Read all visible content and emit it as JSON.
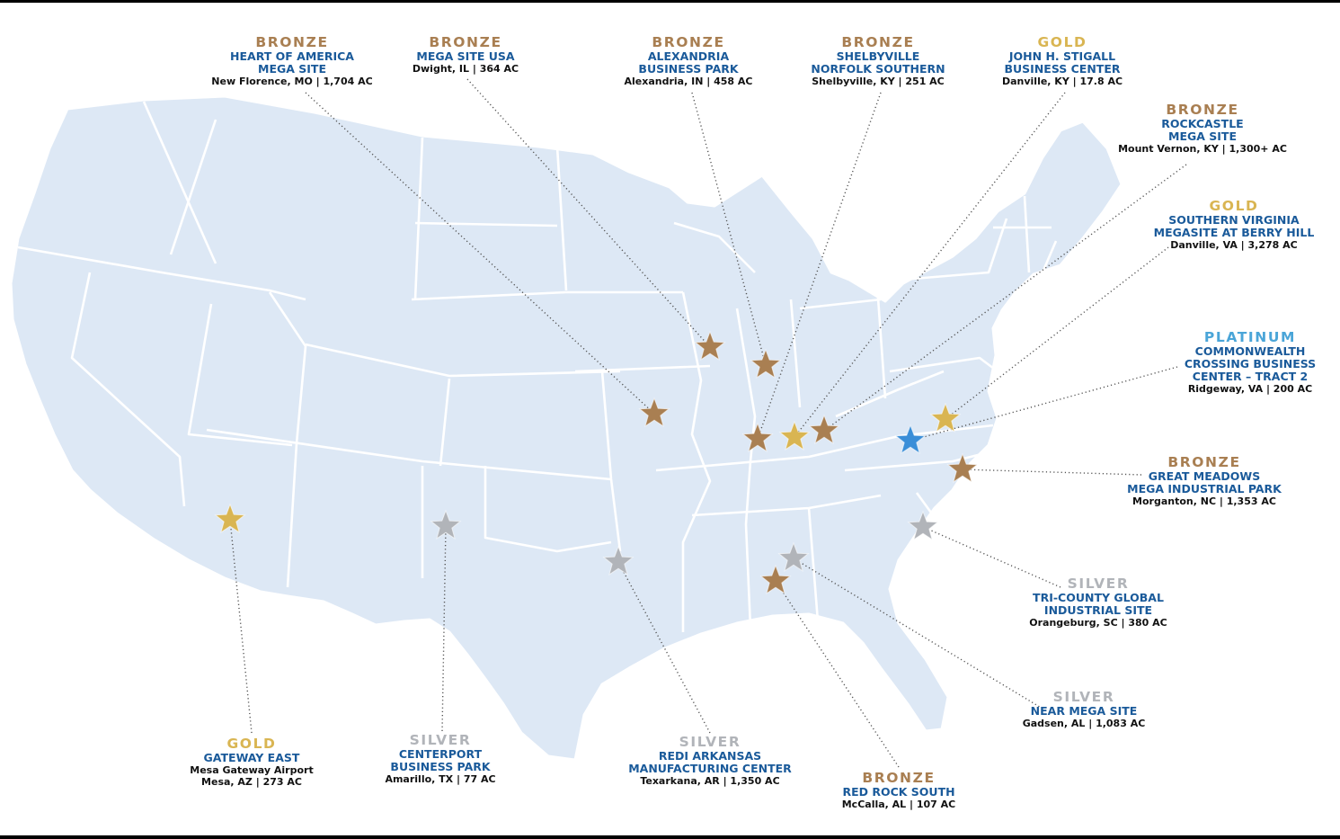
{
  "colors": {
    "map_fill": "#dde8f5",
    "state_border": "#ffffff",
    "bronze": "#a97f52",
    "gold": "#d9b552",
    "silver": "#b1b4b9",
    "platinum": "#3a8ed8",
    "name_text": "#1a5a9a"
  },
  "sites": [
    {
      "id": "heart-of-america",
      "tier": "BRONZE",
      "tier_key": "bronze",
      "name": "HEART OF AMERICA\nMEGA SITE",
      "location": "New Florence, MO | 1,704 AC"
    },
    {
      "id": "mega-site-usa",
      "tier": "BRONZE",
      "tier_key": "bronze",
      "name": "MEGA SITE USA",
      "location": "Dwight, IL | 364 AC"
    },
    {
      "id": "alexandria",
      "tier": "BRONZE",
      "tier_key": "bronze",
      "name": "ALEXANDRIA\nBUSINESS PARK",
      "location": "Alexandria, IN | 458 AC"
    },
    {
      "id": "shelbyville",
      "tier": "BRONZE",
      "tier_key": "bronze",
      "name": "SHELBYVILLE\nNORFOLK SOUTHERN",
      "location": "Shelbyville, KY | 251 AC"
    },
    {
      "id": "stigall",
      "tier": "GOLD",
      "tier_key": "gold",
      "name": "JOHN H. STIGALL\nBUSINESS CENTER",
      "location": "Danville, KY | 17.8 AC"
    },
    {
      "id": "rockcastle",
      "tier": "BRONZE",
      "tier_key": "bronze",
      "name": "ROCKCASTLE\nMEGA SITE",
      "location": "Mount Vernon, KY | 1,300+ AC"
    },
    {
      "id": "southern-virginia",
      "tier": "GOLD",
      "tier_key": "gold",
      "name": "SOUTHERN VIRGINIA\nMEGASITE AT BERRY HILL",
      "location": "Danville, VA | 3,278 AC"
    },
    {
      "id": "commonwealth",
      "tier": "PLATINUM",
      "tier_key": "platinum",
      "name": "COMMONWEALTH\nCROSSING BUSINESS\nCENTER – TRACT 2",
      "location": "Ridgeway, VA | 200 AC"
    },
    {
      "id": "great-meadows",
      "tier": "BRONZE",
      "tier_key": "bronze",
      "name": "GREAT MEADOWS\nMEGA INDUSTRIAL PARK",
      "location": "Morganton, NC | 1,353 AC"
    },
    {
      "id": "tri-county",
      "tier": "SILVER",
      "tier_key": "silver",
      "name": "TRI-COUNTY GLOBAL\nINDUSTRIAL SITE",
      "location": "Orangeburg, SC | 380 AC"
    },
    {
      "id": "near-mega",
      "tier": "SILVER",
      "tier_key": "silver",
      "name": "NEAR MEGA SITE",
      "location": "Gadsen, AL | 1,083 AC"
    },
    {
      "id": "red-rock",
      "tier": "BRONZE",
      "tier_key": "bronze",
      "name": "RED ROCK SOUTH",
      "location": "McCalla, AL | 107 AC"
    },
    {
      "id": "redi-arkansas",
      "tier": "SILVER",
      "tier_key": "silver",
      "name": "REDI ARKANSAS\nMANUFACTURING CENTER",
      "location": "Texarkana, AR | 1,350 AC"
    },
    {
      "id": "centerport",
      "tier": "SILVER",
      "tier_key": "silver",
      "name": "CENTERPORT\nBUSINESS PARK",
      "location": "Amarillo, TX | 77 AC"
    },
    {
      "id": "gateway-east",
      "tier": "GOLD",
      "tier_key": "gold",
      "name": "GATEWAY EAST",
      "location": "Mesa Gateway Airport\nMesa, AZ | 273 AC"
    }
  ]
}
